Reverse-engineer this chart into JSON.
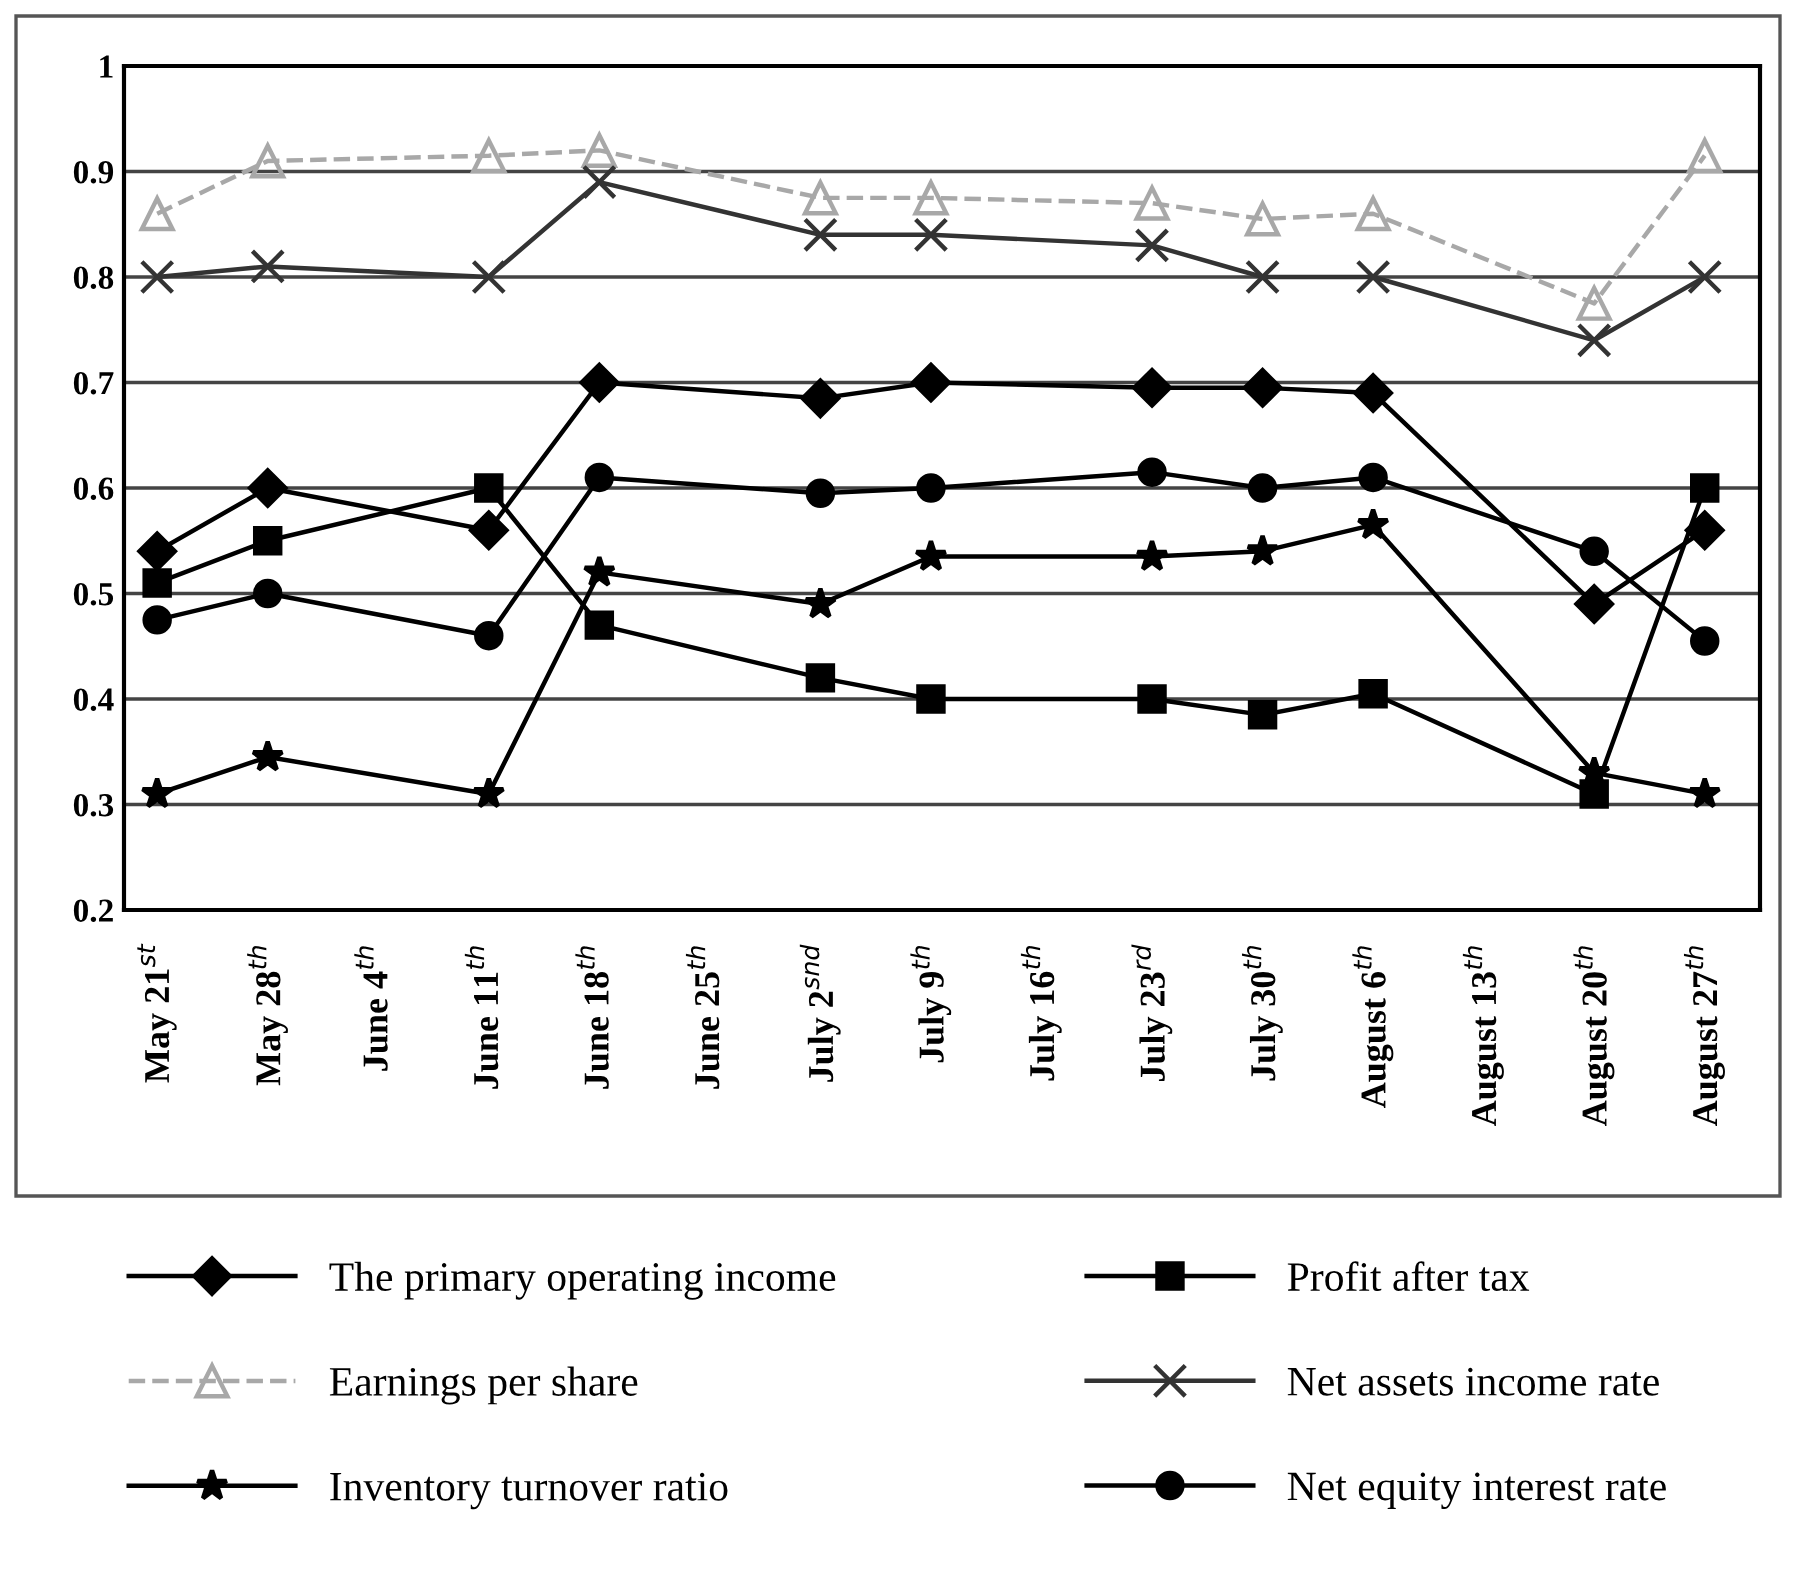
{
  "chart_data": {
    "type": "line",
    "categories": [
      "May 21$^{st}$",
      "May 28$^{th}$",
      "June 4$^{th}$",
      "June 11$^{th}$",
      "June 18$^{th}$",
      "June 25$^{th}$",
      "July 2$^{snd}$",
      "July 9$^{th}$",
      "July 16$^{th}$",
      "July 23$^{rd}$",
      "July 30$^{th}$",
      "August 6$^{th}$",
      "August 13$^{th}$",
      "August 20$^{th}$",
      "August 27$^{th}$"
    ],
    "series": [
      {
        "name": "The primary operating income",
        "color": "#000000",
        "marker": "diamond",
        "line_style": "solid",
        "values": [
          0.54,
          0.6,
          null,
          0.56,
          0.7,
          null,
          0.685,
          0.7,
          null,
          0.695,
          0.695,
          0.69,
          null,
          0.49,
          0.56
        ]
      },
      {
        "name": "Profit after tax",
        "color": "#000000",
        "marker": "square",
        "line_style": "solid",
        "values": [
          0.51,
          0.55,
          null,
          0.6,
          0.47,
          null,
          0.42,
          0.4,
          null,
          0.4,
          0.385,
          0.405,
          null,
          0.31,
          0.6
        ]
      },
      {
        "name": "Earnings per share",
        "color": "#a8a8a8",
        "marker": "triangle",
        "line_style": "dashed",
        "values": [
          0.86,
          0.91,
          null,
          0.915,
          0.92,
          null,
          0.875,
          0.875,
          null,
          0.87,
          0.855,
          0.86,
          null,
          0.775,
          0.915
        ]
      },
      {
        "name": "Net assets income rate",
        "color": "#333333",
        "marker": "cross",
        "line_style": "solid",
        "values": [
          0.8,
          0.81,
          null,
          0.8,
          0.89,
          null,
          0.84,
          0.84,
          null,
          0.83,
          0.8,
          0.8,
          null,
          0.74,
          0.8
        ]
      },
      {
        "name": "Inventory turnover ratio",
        "color": "#000000",
        "marker": "star",
        "line_style": "solid",
        "values": [
          0.31,
          0.345,
          null,
          0.31,
          0.52,
          null,
          0.49,
          0.535,
          null,
          0.535,
          0.54,
          0.565,
          null,
          0.33,
          0.31
        ]
      },
      {
        "name": "Net equity interest rate",
        "color": "#000000",
        "marker": "circle",
        "line_style": "solid",
        "values": [
          0.475,
          0.5,
          null,
          0.46,
          0.61,
          null,
          0.595,
          0.6,
          null,
          0.615,
          0.6,
          0.61,
          null,
          0.54,
          0.455
        ]
      }
    ],
    "ylim": [
      0.2,
      1
    ],
    "yticks": [
      {
        "value": 0.2,
        "label": "0.2"
      },
      {
        "value": 0.3,
        "label": "0.3"
      },
      {
        "value": 0.4,
        "label": "0.4"
      },
      {
        "value": 0.5,
        "label": "0.5"
      },
      {
        "value": 0.6,
        "label": "0.6"
      },
      {
        "value": 0.7,
        "label": "0.7"
      },
      {
        "value": 0.8,
        "label": "0.8"
      },
      {
        "value": 0.9,
        "label": "0.9"
      },
      1
    ],
    "grid": "y",
    "legend": "bottom"
  }
}
